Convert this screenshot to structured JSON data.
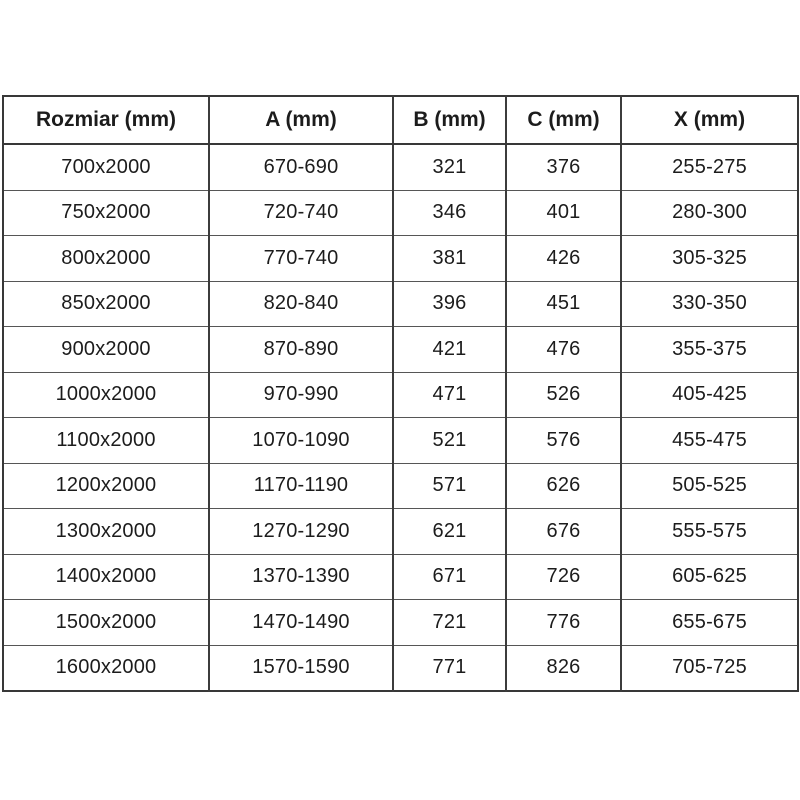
{
  "colors": {
    "background": "#ffffff",
    "text": "#1c1c1c",
    "border_outer": "#383838",
    "border_inner": "#565656"
  },
  "chart_data": {
    "type": "table",
    "title": "",
    "columns": [
      "Rozmiar (mm)",
      "A (mm)",
      "B (mm)",
      "C (mm)",
      "X (mm)"
    ],
    "rows": [
      [
        "700x2000",
        "670-690",
        "321",
        "376",
        "255-275"
      ],
      [
        "750x2000",
        "720-740",
        "346",
        "401",
        "280-300"
      ],
      [
        "800x2000",
        "770-740",
        "381",
        "426",
        "305-325"
      ],
      [
        "850x2000",
        "820-840",
        "396",
        "451",
        "330-350"
      ],
      [
        "900x2000",
        "870-890",
        "421",
        "476",
        "355-375"
      ],
      [
        "1000x2000",
        "970-990",
        "471",
        "526",
        "405-425"
      ],
      [
        "1100x2000",
        "1070-1090",
        "521",
        "576",
        "455-475"
      ],
      [
        "1200x2000",
        "1170-1190",
        "571",
        "626",
        "505-525"
      ],
      [
        "1300x2000",
        "1270-1290",
        "621",
        "676",
        "555-575"
      ],
      [
        "1400x2000",
        "1370-1390",
        "671",
        "726",
        "605-625"
      ],
      [
        "1500x2000",
        "1470-1490",
        "721",
        "776",
        "655-675"
      ],
      [
        "1600x2000",
        "1570-1590",
        "771",
        "826",
        "705-725"
      ]
    ]
  }
}
